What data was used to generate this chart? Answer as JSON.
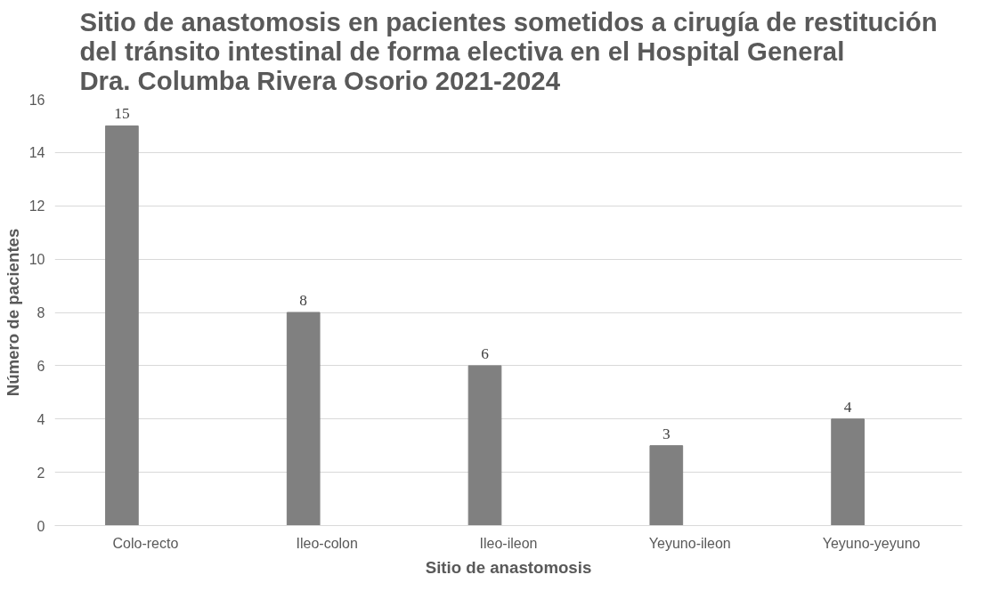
{
  "chart_data": {
    "type": "bar",
    "title": "Sitio de anastomosis en pacientes sometidos a cirugía de restitución del tránsito intestinal de forma electiva en el Hospital General Dra. Columba Rivera Osorio 2021-2024",
    "xlabel": "Sitio de anastomosis",
    "ylabel": "Número de pacientes",
    "categories": [
      "Colo-recto",
      "Ileo-colon",
      "Ileo-ileon",
      "Yeyuno-ileon",
      "Yeyuno-yeyuno"
    ],
    "values": [
      15,
      8,
      6,
      3,
      4
    ],
    "color": "#808080",
    "ylim": [
      0,
      16
    ],
    "yticks": [
      0,
      2,
      4,
      6,
      8,
      10,
      12,
      14,
      16
    ],
    "grid": "y",
    "data_labels": true
  }
}
